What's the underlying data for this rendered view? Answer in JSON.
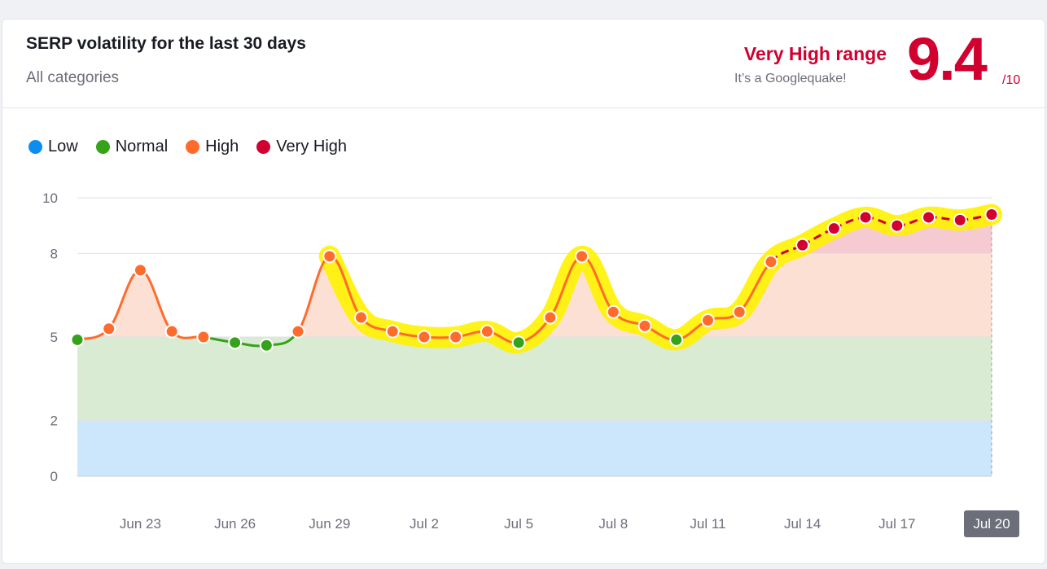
{
  "header": {
    "title": "SERP volatility for the last 30 days",
    "subtitle": "All categories",
    "range_label": "Very High range",
    "range_sub": "It’s a Googlequake!",
    "score": "9.4",
    "score_max": "/10"
  },
  "legend": [
    {
      "label": "Low",
      "color": "#0a8ef0"
    },
    {
      "label": "Normal",
      "color": "#35a219"
    },
    {
      "label": "High",
      "color": "#ff6b2c"
    },
    {
      "label": "Very High",
      "color": "#d1002f"
    }
  ],
  "colors": {
    "low_band": "#cce6fb",
    "normal_band": "#d9ecd3",
    "high_fill": "#fde0d4",
    "veryhigh_fill": "#f5cbd1",
    "normal_line": "#35a219",
    "high_line": "#ff6b2c",
    "veryhigh_line": "#d1002f",
    "highlight": "#fff200"
  },
  "chart_data": {
    "type": "line",
    "title": "SERP volatility for the last 30 days",
    "y_ticks": [
      0,
      2,
      5,
      8,
      10
    ],
    "ylim": [
      0,
      10
    ],
    "bands": [
      {
        "name": "Low",
        "from": 0,
        "to": 2
      },
      {
        "name": "Normal",
        "from": 2,
        "to": 5
      },
      {
        "name": "High",
        "from": 5,
        "to": 8
      },
      {
        "name": "Very High",
        "from": 8,
        "to": 10
      }
    ],
    "x_tick_labels": [
      "Jun 23",
      "Jun 26",
      "Jun 29",
      "Jul 2",
      "Jul 5",
      "Jul 8",
      "Jul 11",
      "Jul 14",
      "Jul 17",
      "Jul 20"
    ],
    "x": [
      "Jun 21",
      "Jun 22",
      "Jun 23",
      "Jun 24",
      "Jun 25",
      "Jun 26",
      "Jun 27",
      "Jun 28",
      "Jun 29",
      "Jun 30",
      "Jul 1",
      "Jul 2",
      "Jul 3",
      "Jul 4",
      "Jul 5",
      "Jul 6",
      "Jul 7",
      "Jul 8",
      "Jul 9",
      "Jul 10",
      "Jul 11",
      "Jul 12",
      "Jul 13",
      "Jul 14",
      "Jul 15",
      "Jul 16",
      "Jul 17",
      "Jul 18",
      "Jul 19",
      "Jul 20"
    ],
    "values": [
      4.9,
      5.3,
      7.4,
      5.2,
      5.0,
      4.8,
      4.7,
      5.2,
      7.9,
      5.7,
      5.2,
      5.0,
      5.0,
      5.2,
      4.8,
      5.7,
      7.9,
      5.9,
      5.4,
      4.9,
      5.6,
      5.9,
      7.7,
      8.3,
      8.9,
      9.3,
      9.0,
      9.3,
      9.2,
      9.4
    ],
    "selected": "Jul 20"
  }
}
